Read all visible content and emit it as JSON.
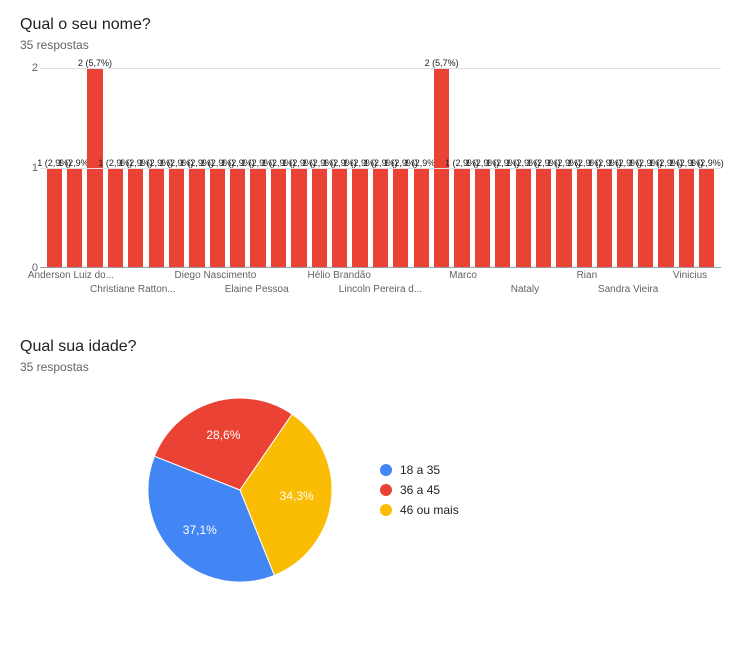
{
  "bar_chart": {
    "title": "Qual o seu nome?",
    "responses_label": "35 respostas",
    "type": "bar",
    "ylim": [
      0,
      2
    ],
    "yticks": [
      0,
      1,
      2
    ],
    "bar_color": "#ea4335",
    "background_color": "#ffffff",
    "grid_color": "#e0e0e0",
    "axis_color": "#9aa0a6",
    "tick_font_color": "#5f6368",
    "bar_width_ratio": 0.75,
    "bars": [
      {
        "value": 1,
        "label": "1 (2,9%)"
      },
      {
        "value": 1,
        "label": "1 (2,9%)"
      },
      {
        "value": 2,
        "label": "2 (5,7%)"
      },
      {
        "value": 1,
        "label": "1 (2,9%)"
      },
      {
        "value": 1,
        "label": "1 (2,9%)"
      },
      {
        "value": 1,
        "label": "1 (2,9%)"
      },
      {
        "value": 1,
        "label": "1 (2,9%)"
      },
      {
        "value": 1,
        "label": "1 (2,9%)"
      },
      {
        "value": 1,
        "label": "1 (2,9%)"
      },
      {
        "value": 1,
        "label": "1 (2,9%)"
      },
      {
        "value": 1,
        "label": "1 (2,9%)"
      },
      {
        "value": 1,
        "label": "1 (2,9%)"
      },
      {
        "value": 1,
        "label": "1 (2,9%)"
      },
      {
        "value": 1,
        "label": "1 (2,9%)"
      },
      {
        "value": 1,
        "label": "1 (2,9%)"
      },
      {
        "value": 1,
        "label": "1 (2,9%)"
      },
      {
        "value": 1,
        "label": "1 (2,9%)"
      },
      {
        "value": 1,
        "label": "1 (2,9%)"
      },
      {
        "value": 1,
        "label": "1 (2,9%)"
      },
      {
        "value": 2,
        "label": "2 (5,7%)"
      },
      {
        "value": 1,
        "label": "1 (2,9%)"
      },
      {
        "value": 1,
        "label": "1 (2,9%)"
      },
      {
        "value": 1,
        "label": "1 (2,9%)"
      },
      {
        "value": 1,
        "label": "1 (2,9%)"
      },
      {
        "value": 1,
        "label": "1 (2,9%)"
      },
      {
        "value": 1,
        "label": "1 (2,9%)"
      },
      {
        "value": 1,
        "label": "1 (2,9%)"
      },
      {
        "value": 1,
        "label": "1 (2,9%)"
      },
      {
        "value": 1,
        "label": "1 (2,9%)"
      },
      {
        "value": 1,
        "label": "1 (2,9%)"
      },
      {
        "value": 1,
        "label": "1 (2,9%)"
      },
      {
        "value": 1,
        "label": "1 (2,9%)"
      },
      {
        "value": 1,
        "label": "1 (2,9%)"
      }
    ],
    "x_labels": [
      {
        "text": "Anderson Luiz do...",
        "slot": 1,
        "row": 1
      },
      {
        "text": "Christiane Ratton...",
        "slot": 4,
        "row": 2
      },
      {
        "text": "Diego Nascimento",
        "slot": 8,
        "row": 1
      },
      {
        "text": "Elaine Pessoa",
        "slot": 10,
        "row": 2
      },
      {
        "text": "Hélio Brandão",
        "slot": 14,
        "row": 1
      },
      {
        "text": "Lincoln Pereira d...",
        "slot": 16,
        "row": 2
      },
      {
        "text": "Marco",
        "slot": 20,
        "row": 1
      },
      {
        "text": "Nataly",
        "slot": 23,
        "row": 2
      },
      {
        "text": "Rian",
        "slot": 26,
        "row": 1
      },
      {
        "text": "Sandra Vieira",
        "slot": 28,
        "row": 2
      },
      {
        "text": "Vinicius",
        "slot": 31,
        "row": 1
      }
    ]
  },
  "pie_chart": {
    "title": "Qual sua idade?",
    "responses_label": "35 respostas",
    "type": "pie",
    "background_color": "#ffffff",
    "start_angle": 0,
    "slices": [
      {
        "label": "18 a 35",
        "percent": 37.1,
        "color": "#4285f4",
        "display": "37,1%"
      },
      {
        "label": "36 a 45",
        "percent": 28.6,
        "color": "#ea4335",
        "display": "28,6%"
      },
      {
        "label": "46 ou mais",
        "percent": 34.3,
        "color": "#fbbc04",
        "display": "34,3%"
      }
    ],
    "legend_items": [
      {
        "label": "18 a 35",
        "color": "#4285f4"
      },
      {
        "label": "36 a 45",
        "color": "#ea4335"
      },
      {
        "label": "46 ou mais",
        "color": "#fbbc04"
      }
    ]
  }
}
